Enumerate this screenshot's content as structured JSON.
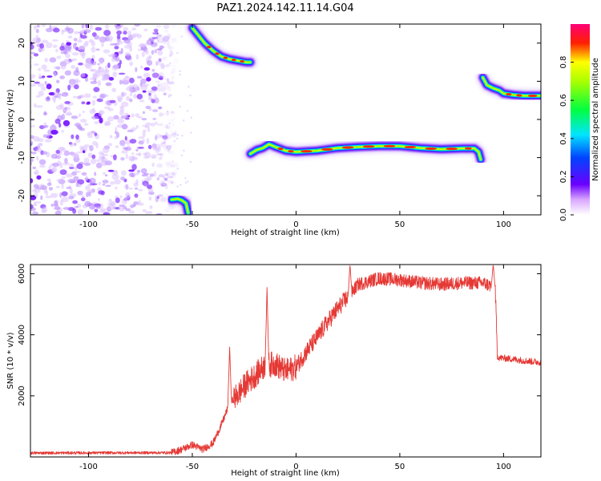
{
  "chart_data": [
    {
      "type": "heatmap",
      "title": "PAZ1.2024.142.11.14.G04",
      "xlabel": "Height of straight line (km)",
      "ylabel": "Frequency (Hz)",
      "xlim": [
        -128,
        118
      ],
      "ylim": [
        -25,
        25
      ],
      "xticks": [
        -100,
        -50,
        0,
        50,
        100
      ],
      "yticks": [
        -20,
        -10,
        0,
        10,
        20
      ],
      "colorbar": {
        "label": "Normalized spectral amplitude",
        "ticks": [
          "0.0",
          "0.2",
          "0.4",
          "0.6",
          "0.8"
        ],
        "range": [
          0,
          1
        ],
        "colormap": "rainbow (white-violet-blue-cyan-green-yellow-red-magenta)"
      },
      "noise_region_x": [
        -128,
        -60
      ],
      "tracks": [
        {
          "x": [
            -50,
            -47,
            -44,
            -40,
            -36,
            -32,
            -28,
            -24,
            -22
          ],
          "y": [
            24,
            22,
            20,
            18,
            16.5,
            15.8,
            15.4,
            15.0,
            15.0
          ]
        },
        {
          "x": [
            -60,
            -57,
            -55,
            -53,
            -52
          ],
          "y": [
            -21,
            -20.8,
            -21.2,
            -22,
            -24.5
          ]
        },
        {
          "x": [
            -22,
            -19,
            -16,
            -13,
            -10,
            -5,
            0,
            10,
            20,
            30,
            40,
            50,
            60,
            70,
            80,
            86,
            88,
            89
          ],
          "y": [
            -9,
            -8,
            -7.5,
            -6.5,
            -7.2,
            -8.2,
            -8.5,
            -8.2,
            -7.5,
            -7.2,
            -7.0,
            -7.0,
            -7.5,
            -7.8,
            -7.6,
            -7.6,
            -8.5,
            -10.5
          ]
        },
        {
          "x": [
            90,
            92,
            95,
            98,
            100,
            105,
            110,
            118
          ],
          "y": [
            11,
            9,
            8.2,
            7.6,
            6.8,
            6.4,
            6.2,
            6.2
          ]
        }
      ]
    },
    {
      "type": "line",
      "xlabel": "Height of straight line (km)",
      "ylabel": "SNR (10 * v/v)",
      "xlim": [
        -128,
        118
      ],
      "ylim": [
        0,
        6300
      ],
      "xticks": [
        -100,
        -50,
        0,
        50,
        100
      ],
      "yticks": [
        2000,
        4000,
        6000
      ],
      "color": "#e53935",
      "series": [
        {
          "x": [
            -128,
            -60,
            -55,
            -50,
            -45,
            -40,
            -36,
            -32,
            -28,
            -24,
            -20,
            -15,
            -10,
            -5,
            0,
            5,
            10,
            15,
            20,
            25,
            30,
            40,
            50,
            60,
            70,
            80,
            90,
            96,
            97,
            98,
            105,
            110,
            118
          ],
          "values": [
            130,
            140,
            250,
            400,
            250,
            450,
            1050,
            1750,
            2050,
            2400,
            2650,
            3000,
            3050,
            2800,
            2950,
            3450,
            3900,
            4400,
            4850,
            5250,
            5650,
            5850,
            5800,
            5700,
            5650,
            5700,
            5700,
            5550,
            3300,
            3250,
            3200,
            3150,
            3100
          ]
        }
      ],
      "spikes": [
        {
          "x": -32,
          "value": 3600
        },
        {
          "x": -14,
          "value": 5550
        },
        {
          "x": 26,
          "value": 6300
        },
        {
          "x": 95,
          "value": 6300
        }
      ]
    }
  ]
}
